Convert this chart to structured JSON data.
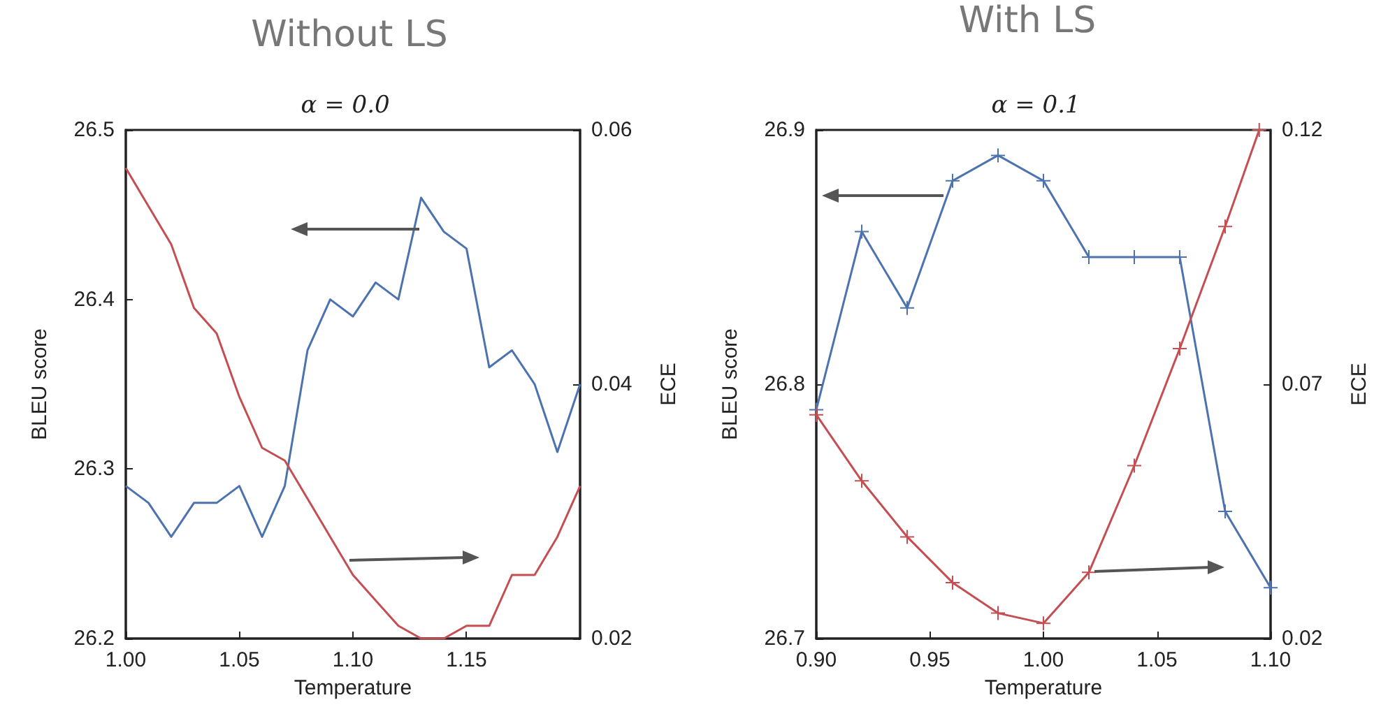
{
  "chart_data": [
    {
      "type": "line",
      "title": "Without LS",
      "subtitle": "α = 0.0",
      "xlabel": "Temperature",
      "ylabel": "BLEU score",
      "y2label": "ECE",
      "marker": "none",
      "grid": false,
      "x": [
        1.0,
        1.01,
        1.02,
        1.03,
        1.04,
        1.05,
        1.06,
        1.07,
        1.08,
        1.09,
        1.1,
        1.11,
        1.12,
        1.13,
        1.14,
        1.15,
        1.16,
        1.17,
        1.18,
        1.19,
        1.2
      ],
      "xlim": [
        1.0,
        1.2
      ],
      "xticks": [
        {
          "value": 1.0,
          "label": "1.00"
        },
        {
          "value": 1.05,
          "label": "1.05"
        },
        {
          "value": 1.1,
          "label": "1.10"
        },
        {
          "value": 1.15,
          "label": "1.15"
        }
      ],
      "ylim": [
        26.2,
        26.5
      ],
      "yticks": [
        26.2,
        26.3,
        26.4,
        26.5
      ],
      "y2lim": [
        0.02,
        0.06
      ],
      "y2ticks": [
        0.02,
        0.04,
        0.06
      ],
      "series": [
        {
          "color": "#4c72b0",
          "values": [
            26.29,
            26.28,
            26.26,
            26.28,
            26.28,
            26.29,
            26.26,
            26.29,
            26.37,
            26.4,
            26.39,
            26.41,
            26.4,
            26.46,
            26.44,
            26.43,
            26.36,
            26.37,
            26.35,
            26.31,
            26.35
          ]
        },
        {
          "color": "#c44e52",
          "axis": "y2",
          "values": [
            0.057,
            0.054,
            0.051,
            0.046,
            0.044,
            0.039,
            0.035,
            0.034,
            0.031,
            0.028,
            0.025,
            0.023,
            0.021,
            0.02,
            0.02,
            0.021,
            0.021,
            0.025,
            0.025,
            0.028,
            0.032
          ]
        }
      ]
    },
    {
      "type": "line",
      "title": "With LS",
      "subtitle": "α = 0.1",
      "xlabel": "Temperature",
      "ylabel": "BLEU score",
      "y2label": "ECE",
      "marker": "cross",
      "grid": false,
      "x": [
        0.9,
        0.92,
        0.94,
        0.96,
        0.98,
        1.0,
        1.02,
        1.04,
        1.06,
        1.08,
        1.1
      ],
      "xlim": [
        0.9,
        1.1
      ],
      "xticks": [
        {
          "value": 0.9,
          "label": "0.90"
        },
        {
          "value": 0.95,
          "label": "0.95"
        },
        {
          "value": 1.0,
          "label": "1.00"
        },
        {
          "value": 1.05,
          "label": "1.05"
        },
        {
          "value": 1.1,
          "label": "1.10"
        }
      ],
      "ylim": [
        26.7,
        26.9
      ],
      "yticks": [
        26.7,
        26.8,
        26.9
      ],
      "y2lim": [
        0.02,
        0.12
      ],
      "y2ticks": [
        0.02,
        0.07,
        0.12
      ],
      "series": [
        {
          "color": "#4c72b0",
          "values": [
            26.79,
            26.86,
            26.83,
            26.88,
            26.89,
            26.88,
            26.85,
            26.85,
            26.85,
            26.75,
            26.72
          ]
        },
        {
          "color": "#c44e52",
          "axis": "y2",
          "x": [
            0.9,
            0.92,
            0.94,
            0.96,
            0.98,
            1.0,
            1.02,
            1.04,
            1.06,
            1.08,
            1.095
          ],
          "values": [
            0.064,
            0.051,
            0.04,
            0.031,
            0.025,
            0.023,
            0.033,
            0.054,
            0.077,
            0.101,
            0.12
          ]
        }
      ]
    }
  ]
}
